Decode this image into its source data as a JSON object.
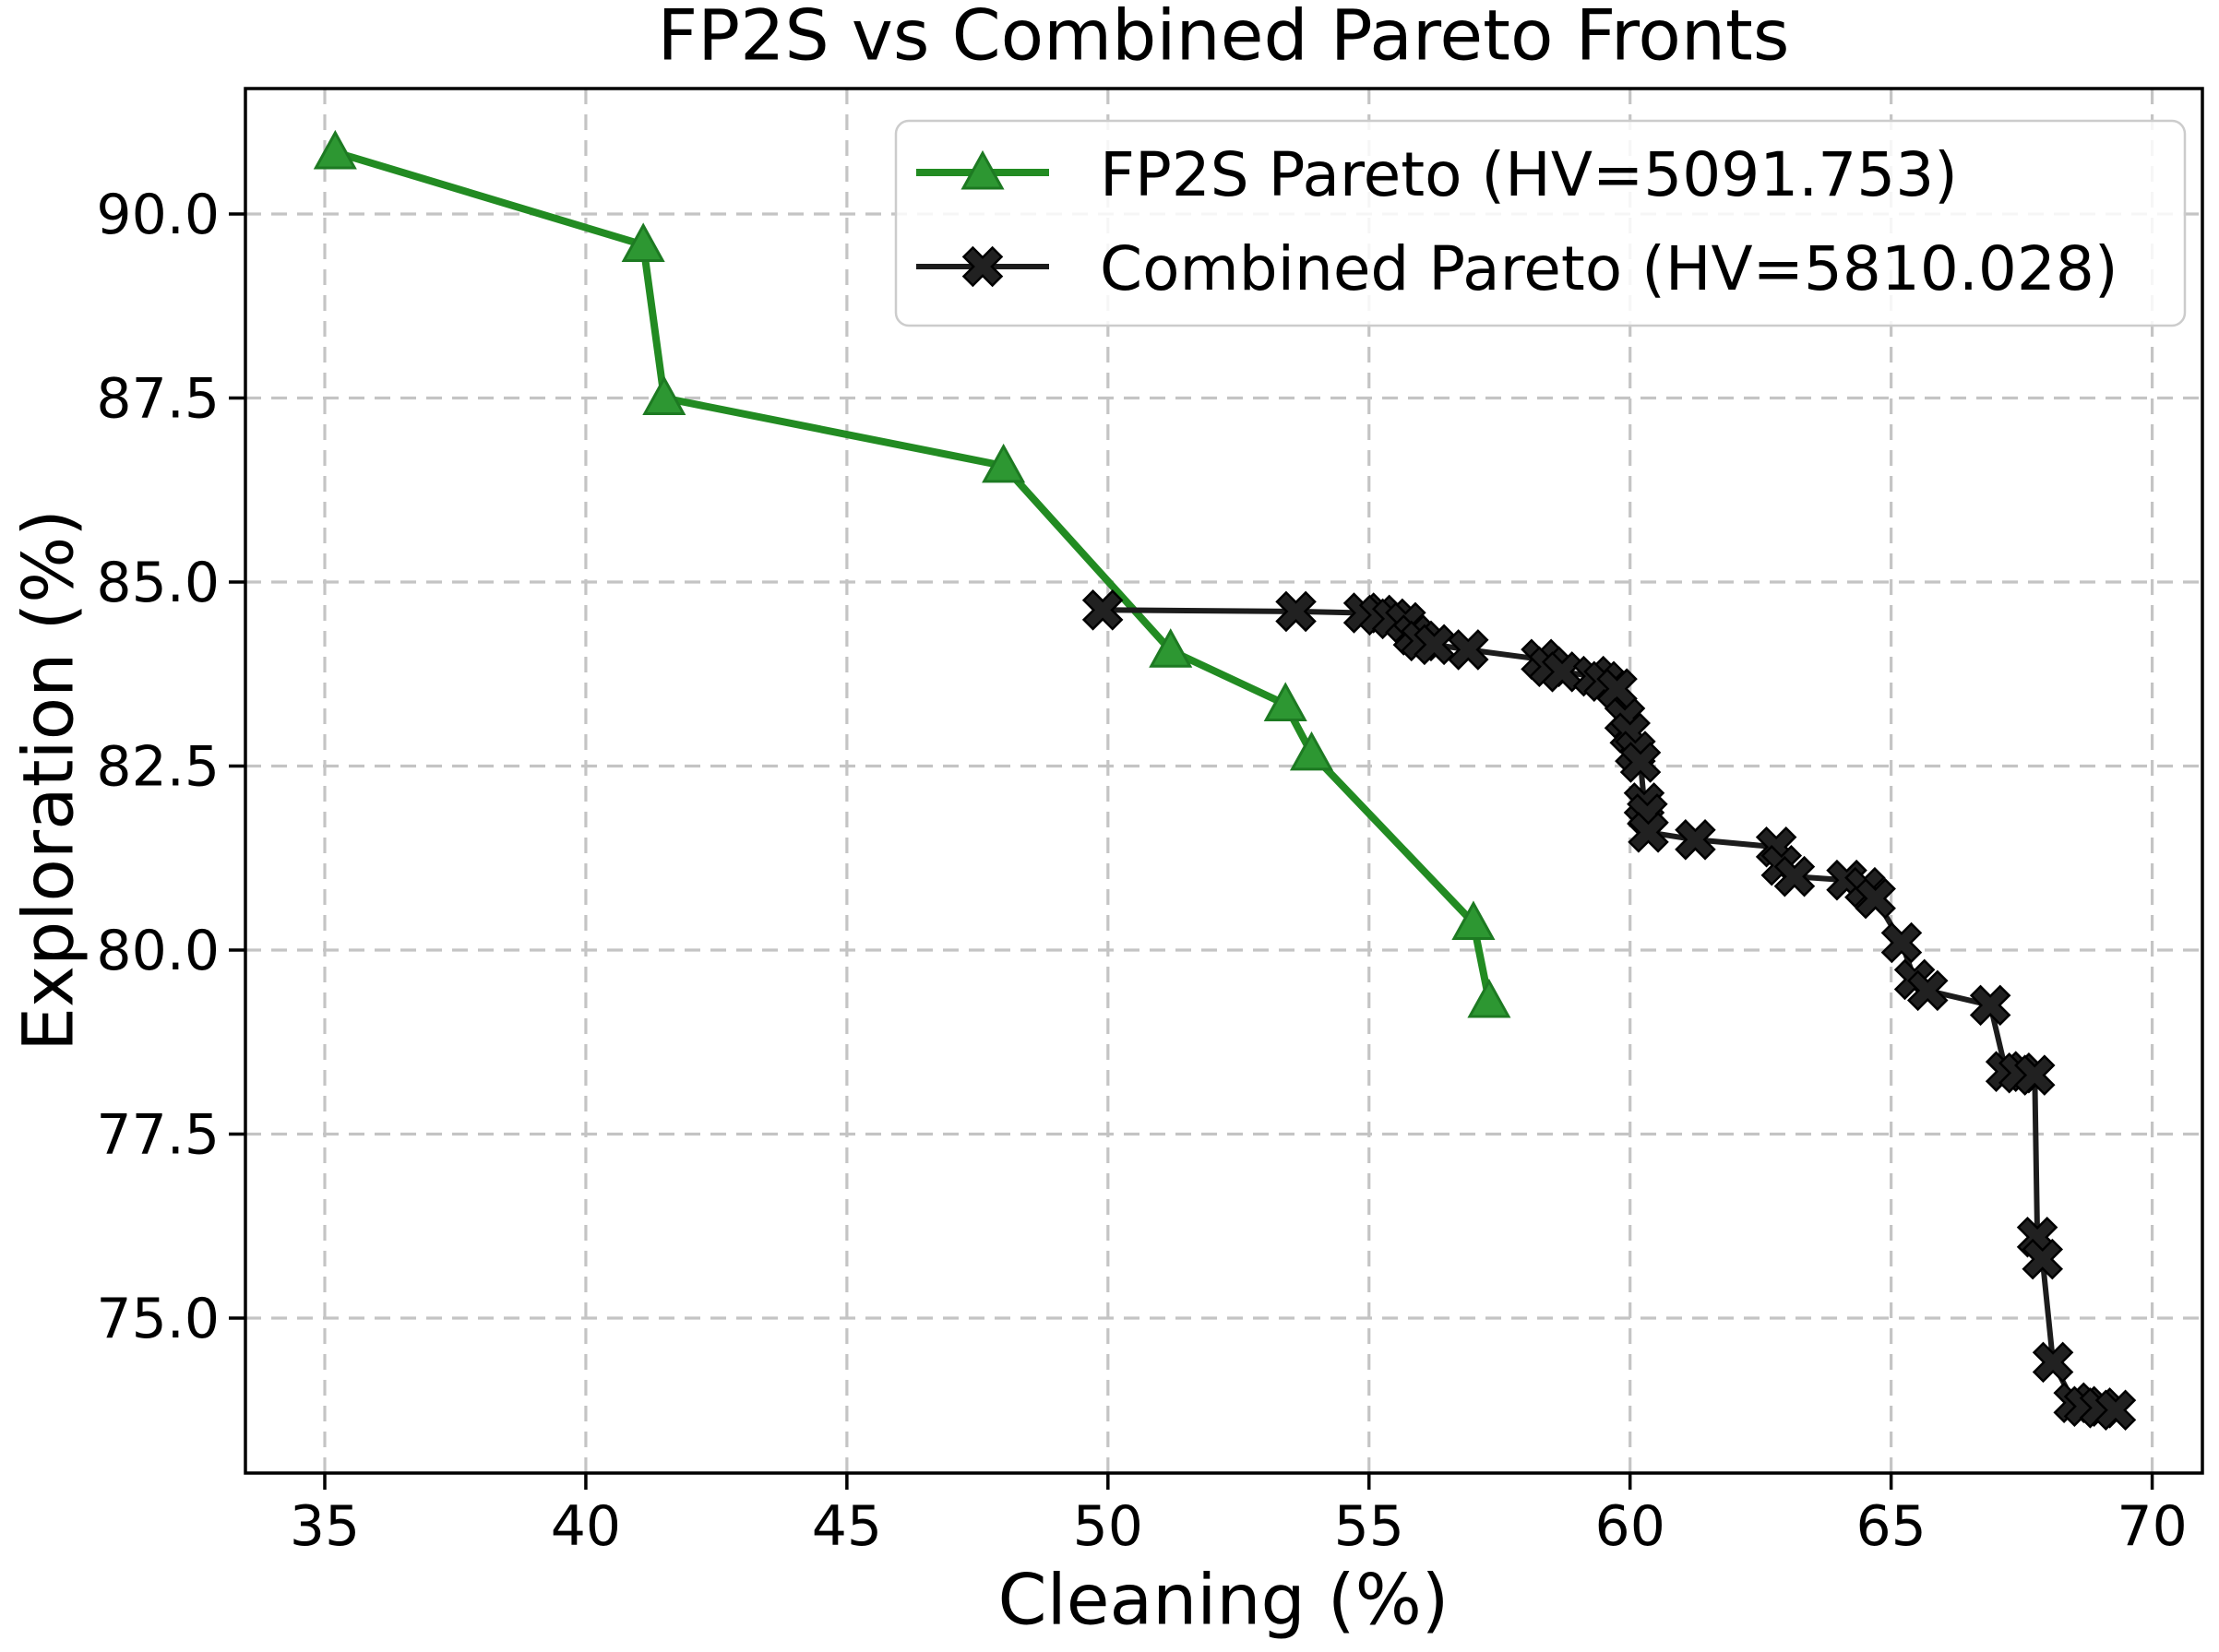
{
  "chart_data": {
    "type": "line",
    "title": "FP2S vs Combined Pareto Fronts",
    "xlabel": "Cleaning (%)",
    "ylabel": "Exploration (%)",
    "xlim": [
      33.5,
      71.0
    ],
    "ylim": [
      72.9,
      91.7
    ],
    "xticks": [
      35,
      40,
      45,
      50,
      55,
      60,
      65,
      70
    ],
    "yticks": [
      75.0,
      77.5,
      80.0,
      82.5,
      85.0,
      87.5,
      90.0
    ],
    "grid": true,
    "grid_style": "dashed",
    "legend_position": "upper right",
    "colors": {
      "fp2s": "#228B22",
      "combined": "#1c1c1c",
      "grid": "#c4c4c4",
      "spine": "#000000"
    },
    "series": [
      {
        "name": "FP2S Pareto (HV=5091.753)",
        "hv": 5091.753,
        "color": "#228B22",
        "marker": "triangle-up",
        "points": [
          [
            35.2,
            90.84
          ],
          [
            41.1,
            89.58
          ],
          [
            41.5,
            87.5
          ],
          [
            48.0,
            86.58
          ],
          [
            51.2,
            84.07
          ],
          [
            53.4,
            83.34
          ],
          [
            53.9,
            82.67
          ],
          [
            57.0,
            80.37
          ],
          [
            57.3,
            79.31
          ]
        ]
      },
      {
        "name": "Combined Pareto (HV=5810.028)",
        "hv": 5810.028,
        "color": "#1c1c1c",
        "marker": "x-filled",
        "points": [
          [
            49.9,
            84.62
          ],
          [
            53.6,
            84.6
          ],
          [
            54.9,
            84.58
          ],
          [
            55.2,
            84.55
          ],
          [
            55.45,
            84.5
          ],
          [
            55.7,
            84.45
          ],
          [
            55.85,
            84.28
          ],
          [
            56.0,
            84.2
          ],
          [
            56.25,
            84.15
          ],
          [
            56.9,
            84.08
          ],
          [
            58.3,
            83.95
          ],
          [
            58.45,
            83.85
          ],
          [
            58.7,
            83.78
          ],
          [
            59.3,
            83.72
          ],
          [
            59.5,
            83.65
          ],
          [
            59.75,
            83.55
          ],
          [
            59.9,
            83.15
          ],
          [
            60.0,
            82.95
          ],
          [
            60.1,
            82.7
          ],
          [
            60.2,
            82.55
          ],
          [
            60.27,
            82.0
          ],
          [
            60.33,
            81.85
          ],
          [
            60.35,
            81.6
          ],
          [
            61.25,
            81.5
          ],
          [
            62.8,
            81.4
          ],
          [
            62.9,
            81.15
          ],
          [
            63.15,
            81.0
          ],
          [
            64.15,
            80.95
          ],
          [
            64.5,
            80.85
          ],
          [
            64.7,
            80.7
          ],
          [
            65.2,
            80.1
          ],
          [
            65.45,
            79.6
          ],
          [
            65.7,
            79.45
          ],
          [
            66.9,
            79.25
          ],
          [
            67.2,
            78.35
          ],
          [
            67.45,
            78.33
          ],
          [
            67.75,
            78.3
          ],
          [
            67.8,
            76.1
          ],
          [
            67.9,
            75.8
          ],
          [
            68.1,
            74.4
          ],
          [
            68.5,
            73.85
          ],
          [
            68.7,
            73.8
          ],
          [
            69.0,
            73.78
          ],
          [
            69.3,
            73.75
          ]
        ]
      }
    ]
  }
}
